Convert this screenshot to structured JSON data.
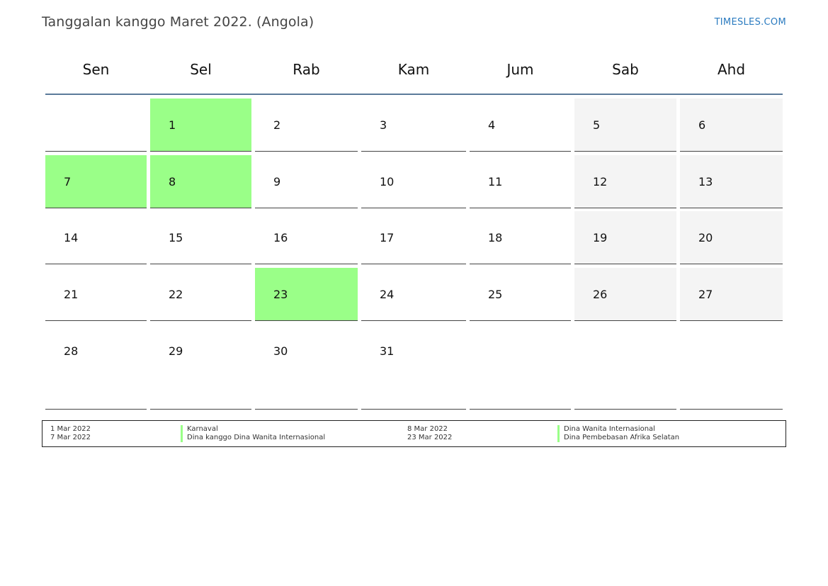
{
  "header": {
    "title": "Tanggalan kanggo Maret 2022. (Angola)",
    "brand": "TIMESLES.COM"
  },
  "weekdays": [
    "Sen",
    "Sel",
    "Rab",
    "Kam",
    "Jum",
    "Sab",
    "Ahd"
  ],
  "weeks": [
    [
      {
        "day": "",
        "state": "empty"
      },
      {
        "day": "1",
        "state": "holiday"
      },
      {
        "day": "2",
        "state": "normal"
      },
      {
        "day": "3",
        "state": "normal"
      },
      {
        "day": "4",
        "state": "normal"
      },
      {
        "day": "5",
        "state": "weekend"
      },
      {
        "day": "6",
        "state": "weekend"
      }
    ],
    [
      {
        "day": "7",
        "state": "holiday"
      },
      {
        "day": "8",
        "state": "holiday"
      },
      {
        "day": "9",
        "state": "normal"
      },
      {
        "day": "10",
        "state": "normal"
      },
      {
        "day": "11",
        "state": "normal"
      },
      {
        "day": "12",
        "state": "weekend"
      },
      {
        "day": "13",
        "state": "weekend"
      }
    ],
    [
      {
        "day": "14",
        "state": "normal"
      },
      {
        "day": "15",
        "state": "normal"
      },
      {
        "day": "16",
        "state": "normal"
      },
      {
        "day": "17",
        "state": "normal"
      },
      {
        "day": "18",
        "state": "normal"
      },
      {
        "day": "19",
        "state": "weekend"
      },
      {
        "day": "20",
        "state": "weekend"
      }
    ],
    [
      {
        "day": "21",
        "state": "normal"
      },
      {
        "day": "22",
        "state": "normal"
      },
      {
        "day": "23",
        "state": "holiday"
      },
      {
        "day": "24",
        "state": "normal"
      },
      {
        "day": "25",
        "state": "normal"
      },
      {
        "day": "26",
        "state": "weekend"
      },
      {
        "day": "27",
        "state": "weekend"
      }
    ],
    [
      {
        "day": "28",
        "state": "normal"
      },
      {
        "day": "29",
        "state": "normal"
      },
      {
        "day": "30",
        "state": "normal"
      },
      {
        "day": "31",
        "state": "normal"
      },
      {
        "day": "",
        "state": "empty"
      },
      {
        "day": "",
        "state": "empty"
      },
      {
        "day": "",
        "state": "empty"
      }
    ]
  ],
  "holidays": [
    {
      "date": "1 Mar 2022",
      "name": "Karnaval"
    },
    {
      "date": "7 Mar 2022",
      "name": "Dina kanggo Dina Wanita Internasional"
    },
    {
      "date": "8 Mar 2022",
      "name": "Dina Wanita Internasional"
    },
    {
      "date": "23 Mar 2022",
      "name": "Dina Pembebasan Afrika Selatan"
    }
  ],
  "colors": {
    "holiday": "#9aff88",
    "weekend": "#f4f4f4",
    "header_rule": "#5b7a9a",
    "brand": "#2b7bc0"
  }
}
